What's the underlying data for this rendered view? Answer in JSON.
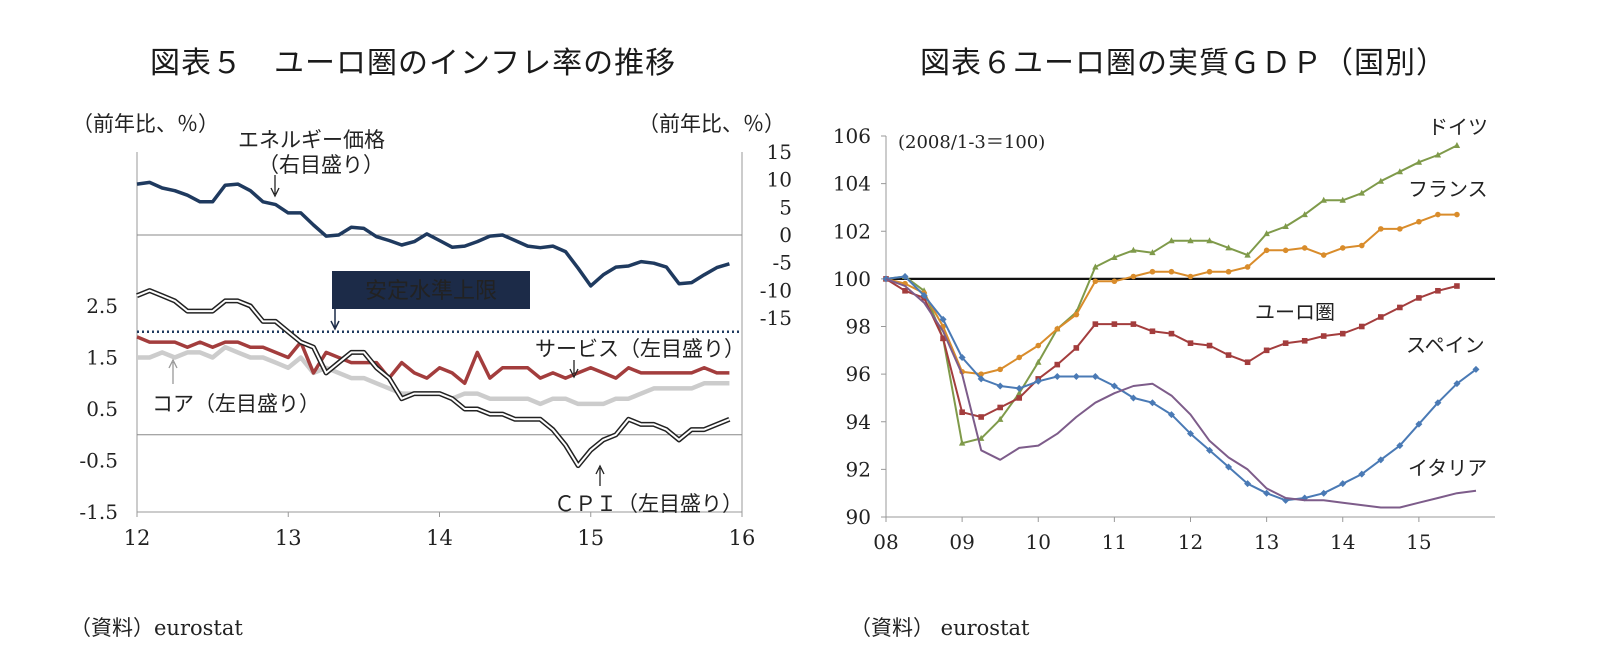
{
  "chart_data": [
    {
      "id": "fig5",
      "type": "line",
      "title": "図表５　ユーロ圏のインフレ率の推移",
      "left_unit": "（前年比、％）",
      "right_unit": "（前年比、％）",
      "x_ticks": [
        "12",
        "13",
        "14",
        "15",
        "16"
      ],
      "x_range": [
        2012,
        2016
      ],
      "left_axis": {
        "ticks": [
          "2.5",
          "1.5",
          "0.5",
          "-0.5",
          "-1.5"
        ],
        "tick_values": [
          2.5,
          1.5,
          0.5,
          -0.5,
          -1.5
        ],
        "ylim": [
          -1.5,
          2.5
        ]
      },
      "right_axis": {
        "ticks": [
          "15",
          "10",
          "5",
          "0",
          "-5",
          "-10",
          "-15"
        ],
        "tick_values": [
          15,
          10,
          5,
          0,
          -5,
          -10,
          -15
        ],
        "ylim": [
          -15,
          15
        ]
      },
      "reference_lines": [
        {
          "axis": "left",
          "value": 2.0,
          "style": "dotted",
          "label": "安定水準上限"
        },
        {
          "axis": "left",
          "value": 0.0,
          "style": "solid"
        },
        {
          "axis": "right",
          "value": 0.0,
          "style": "solid"
        }
      ],
      "series": [
        {
          "name": "エネルギー価格（右目盛り）",
          "axis": "right",
          "color": "#1f3a5f",
          "label_lines": [
            "エネルギー価格",
            "（右目盛り）"
          ],
          "start": 2012.0,
          "step": 0.08333,
          "values": [
            9.2,
            9.5,
            8.5,
            8.0,
            7.2,
            6.0,
            6.0,
            9.0,
            9.2,
            8.0,
            6.0,
            5.5,
            4.0,
            4.0,
            1.8,
            -0.2,
            0.0,
            1.4,
            1.2,
            -0.3,
            -1.0,
            -1.8,
            -1.2,
            0.2,
            -1.0,
            -2.2,
            -2.0,
            -1.2,
            -0.2,
            0.0,
            -1.0,
            -2.0,
            -2.3,
            -2.0,
            -3.0,
            -6.0,
            -9.2,
            -7.2,
            -5.8,
            -5.6,
            -4.8,
            -5.1,
            -5.8,
            -8.8,
            -8.6,
            -7.2,
            -5.9,
            -5.2
          ]
        },
        {
          "name": "ＣＰＩ（左目盛り）",
          "axis": "left",
          "color": "#222222",
          "style": "double",
          "label": "ＣＰＩ（左目盛り）",
          "start": 2012.0,
          "step": 0.08333,
          "values": [
            2.7,
            2.8,
            2.7,
            2.6,
            2.4,
            2.4,
            2.4,
            2.6,
            2.6,
            2.5,
            2.2,
            2.2,
            2.0,
            1.8,
            1.7,
            1.2,
            1.4,
            1.6,
            1.6,
            1.3,
            1.1,
            0.7,
            0.8,
            0.8,
            0.8,
            0.7,
            0.5,
            0.5,
            0.4,
            0.4,
            0.3,
            0.3,
            0.3,
            0.1,
            -0.2,
            -0.6,
            -0.3,
            -0.1,
            0.0,
            0.3,
            0.2,
            0.2,
            0.1,
            -0.1,
            0.1,
            0.1,
            0.2,
            0.3
          ]
        },
        {
          "name": "サービス（左目盛り）",
          "axis": "left",
          "color": "#a33d3d",
          "label": "サービス（左目盛り）",
          "start": 2012.0,
          "step": 0.08333,
          "values": [
            1.9,
            1.8,
            1.8,
            1.8,
            1.7,
            1.8,
            1.7,
            1.8,
            1.8,
            1.7,
            1.7,
            1.6,
            1.5,
            1.8,
            1.2,
            1.6,
            1.5,
            1.4,
            1.4,
            1.4,
            1.1,
            1.4,
            1.2,
            1.1,
            1.3,
            1.2,
            1.0,
            1.6,
            1.1,
            1.3,
            1.3,
            1.3,
            1.1,
            1.2,
            1.1,
            1.2,
            1.3,
            1.2,
            1.1,
            1.3,
            1.2,
            1.2,
            1.2,
            1.2,
            1.2,
            1.3,
            1.2,
            1.2
          ]
        },
        {
          "name": "コア（左目盛り）",
          "axis": "left",
          "color": "#cccccc",
          "label": "コア（左目盛り）",
          "start": 2012.0,
          "step": 0.08333,
          "values": [
            1.5,
            1.5,
            1.6,
            1.5,
            1.6,
            1.6,
            1.5,
            1.7,
            1.6,
            1.5,
            1.5,
            1.4,
            1.3,
            1.5,
            1.2,
            1.3,
            1.2,
            1.1,
            1.1,
            1.0,
            0.9,
            0.8,
            0.8,
            0.8,
            0.8,
            0.7,
            0.8,
            0.8,
            0.7,
            0.7,
            0.7,
            0.7,
            0.6,
            0.7,
            0.7,
            0.6,
            0.6,
            0.6,
            0.7,
            0.7,
            0.8,
            0.9,
            0.9,
            0.9,
            0.9,
            1.0,
            1.0,
            1.0
          ]
        }
      ]
    },
    {
      "id": "fig6",
      "type": "line",
      "title": "図表６ユーロ圏の実質ＧＤＰ（国別）",
      "note": "(2008/1-3＝100)",
      "x_ticks": [
        "08",
        "09",
        "10",
        "11",
        "12",
        "13",
        "14",
        "15"
      ],
      "x_range": [
        2008,
        2016
      ],
      "y_ticks": [
        "106",
        "104",
        "102",
        "100",
        "98",
        "96",
        "94",
        "92",
        "90"
      ],
      "ylim": [
        90,
        106
      ],
      "reference_lines": [
        {
          "value": 100,
          "style": "solid"
        }
      ],
      "series": [
        {
          "name": "ドイツ",
          "color": "#7f9a4a",
          "marker": "triangle",
          "start": 2008.0,
          "step": 0.25,
          "values": [
            100.0,
            100.1,
            99.5,
            97.5,
            93.1,
            93.3,
            94.1,
            95.2,
            96.5,
            97.9,
            98.6,
            100.5,
            100.9,
            101.2,
            101.1,
            101.6,
            101.6,
            101.6,
            101.3,
            101.0,
            101.9,
            102.2,
            102.7,
            103.3,
            103.3,
            103.6,
            104.1,
            104.5,
            104.9,
            105.2,
            105.6
          ]
        },
        {
          "name": "フランス",
          "color": "#d98c2b",
          "marker": "circle",
          "start": 2008.0,
          "step": 0.25,
          "values": [
            100.0,
            99.8,
            99.4,
            98.0,
            96.1,
            96.0,
            96.2,
            96.7,
            97.2,
            97.9,
            98.5,
            99.9,
            99.9,
            100.1,
            100.3,
            100.3,
            100.1,
            100.3,
            100.3,
            100.5,
            101.2,
            101.2,
            101.3,
            101.0,
            101.3,
            101.4,
            102.1,
            102.1,
            102.4,
            102.7,
            102.7
          ]
        },
        {
          "name": "ユーロ圏",
          "color": "#a33d3d",
          "marker": "square",
          "start": 2008.0,
          "step": 0.25,
          "values": [
            100.0,
            99.5,
            99.2,
            97.5,
            94.4,
            94.2,
            94.6,
            95.0,
            95.8,
            96.4,
            97.1,
            98.1,
            98.1,
            98.1,
            97.8,
            97.7,
            97.3,
            97.2,
            96.8,
            96.5,
            97.0,
            97.3,
            97.4,
            97.6,
            97.7,
            98.0,
            98.4,
            98.8,
            99.2,
            99.5,
            99.7
          ]
        },
        {
          "name": "スペイン",
          "color": "#4a7ab5",
          "marker": "diamond",
          "start": 2008.0,
          "step": 0.25,
          "values": [
            100.0,
            100.1,
            99.3,
            98.3,
            96.7,
            95.8,
            95.5,
            95.4,
            95.7,
            95.9,
            95.9,
            95.9,
            95.5,
            95.0,
            94.8,
            94.3,
            93.5,
            92.8,
            92.1,
            91.4,
            91.0,
            90.7,
            90.8,
            91.0,
            91.4,
            91.8,
            92.4,
            93.0,
            93.9,
            94.8,
            95.6,
            96.2
          ]
        },
        {
          "name": "イタリア",
          "color": "#7d5c8a",
          "marker": "none",
          "start": 2008.0,
          "step": 0.25,
          "values": [
            100.0,
            99.7,
            99.0,
            97.8,
            96.0,
            92.8,
            92.4,
            92.9,
            93.0,
            93.5,
            94.2,
            94.8,
            95.2,
            95.5,
            95.6,
            95.1,
            94.3,
            93.2,
            92.5,
            92.0,
            91.2,
            90.8,
            90.7,
            90.7,
            90.6,
            90.5,
            90.4,
            90.4,
            90.6,
            90.8,
            91.0,
            91.1
          ]
        }
      ]
    }
  ],
  "sources": {
    "left": "（資料）eurostat",
    "right": "（資料） eurostat"
  }
}
